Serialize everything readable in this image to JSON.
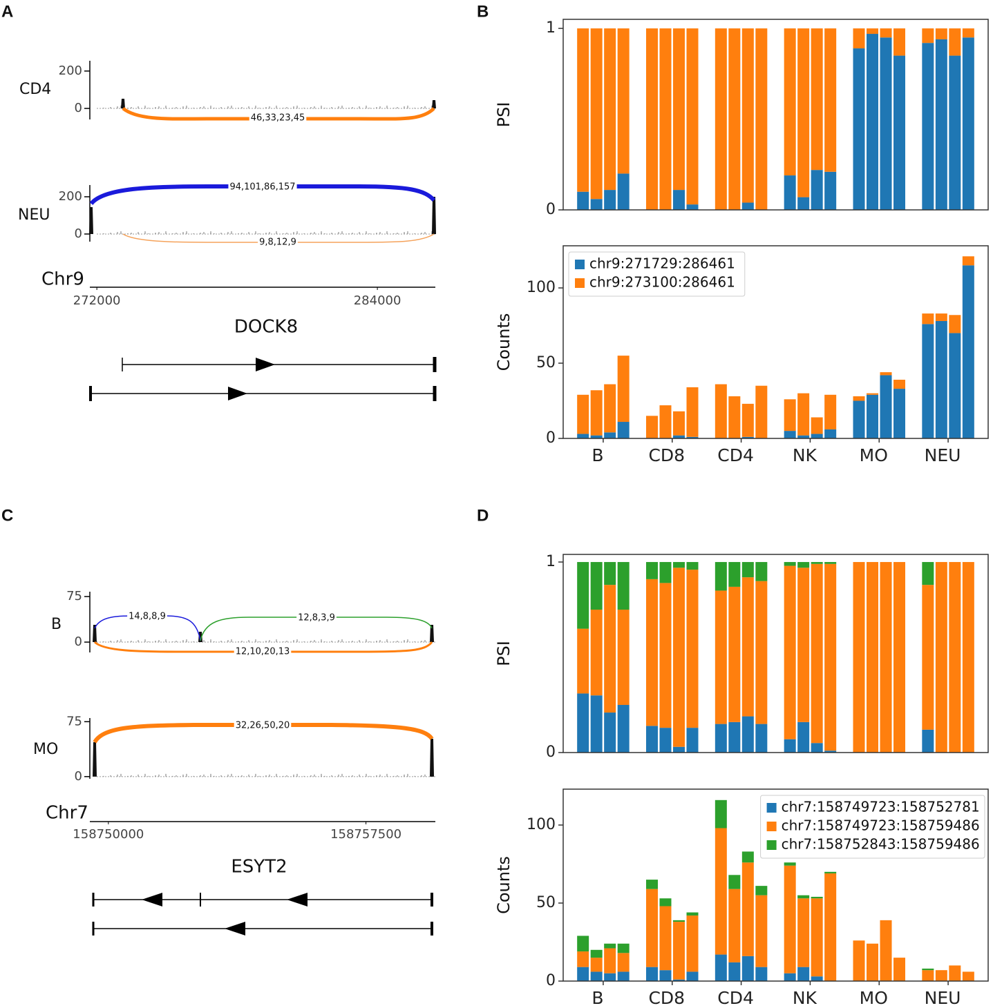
{
  "panel_labels": [
    "A",
    "B",
    "C",
    "D"
  ],
  "sashimi": [
    {
      "tracks": [
        {
          "name": "CD4",
          "ylim": [
            -59,
            255
          ],
          "yticks": [
            0,
            200
          ],
          "junctions": [
            "46,33,23,45"
          ]
        },
        {
          "name": "NEU",
          "ylim": [
            -41,
            263
          ],
          "yticks": [
            0,
            200
          ],
          "junctions": [
            "94,101,86,157",
            "9,8,12,9"
          ]
        }
      ],
      "chromosome": "Chr9",
      "xlim": [
        271700,
        286480
      ],
      "xticks": [
        272000,
        284000
      ],
      "gene": "DOCK8"
    },
    {
      "tracks": [
        {
          "name": "B",
          "ylim": [
            -17,
            83
          ],
          "yticks": [
            0,
            75
          ],
          "junctions": [
            "14,8,8,9",
            "12,8,3,9",
            "12,10,20,13"
          ]
        },
        {
          "name": "MO",
          "ylim": [
            -3,
            80
          ],
          "yticks": [
            0,
            75
          ],
          "junctions": [
            "32,26,50,20"
          ]
        }
      ],
      "chromosome": "Chr7",
      "xlim": [
        158749460,
        158759520
      ],
      "xticks": [
        158750000,
        158757500
      ],
      "gene": "ESYT2"
    }
  ],
  "chart_data": [
    {
      "type": "bar",
      "stacked": true,
      "y_label": "PSI",
      "ylim": [
        0,
        1.05
      ],
      "yticks": [
        0,
        1
      ],
      "series": [
        {
          "color": "#1f77b4",
          "values": [
            [
              0.1,
              0.06,
              0.11,
              0.2
            ],
            [
              0,
              0,
              0.11,
              0.03
            ],
            [
              0,
              0,
              0.04,
              0
            ],
            [
              0.19,
              0.07,
              0.22,
              0.21
            ],
            [
              0.89,
              0.97,
              0.95,
              0.85
            ],
            [
              0.92,
              0.94,
              0.85,
              0.95
            ]
          ]
        },
        {
          "color": "#ff7f0e",
          "values": [
            [
              0.9,
              0.94,
              0.89,
              0.8
            ],
            [
              1,
              1,
              0.89,
              0.97
            ],
            [
              1,
              1,
              0.96,
              1
            ],
            [
              0.81,
              0.93,
              0.78,
              0.79
            ],
            [
              0.11,
              0.03,
              0.05,
              0.15
            ],
            [
              0.08,
              0.06,
              0.15,
              0.05
            ]
          ]
        }
      ]
    },
    {
      "type": "bar",
      "stacked": true,
      "y_label": "Counts",
      "ylim": [
        0,
        128
      ],
      "yticks": [
        0,
        50,
        100
      ],
      "legend": "upper left",
      "categories": [
        "B",
        "CD8",
        "CD4",
        "NK",
        "MO",
        "NEU"
      ],
      "series": [
        {
          "name": "chr9:271729:286461",
          "color": "#1f77b4",
          "values": [
            [
              3,
              2,
              4,
              11
            ],
            [
              0,
              0,
              2,
              1
            ],
            [
              0,
              0,
              1,
              0
            ],
            [
              5,
              2,
              3,
              6
            ],
            [
              25,
              29,
              42,
              33
            ],
            [
              76,
              78,
              70,
              115
            ]
          ]
        },
        {
          "name": "chr9:273100:286461",
          "color": "#ff7f0e",
          "values": [
            [
              26,
              30,
              32,
              44
            ],
            [
              15,
              22,
              16,
              33
            ],
            [
              36,
              28,
              22,
              35
            ],
            [
              21,
              28,
              11,
              23
            ],
            [
              3,
              1,
              2,
              6
            ],
            [
              7,
              5,
              12,
              6
            ]
          ]
        }
      ]
    },
    {
      "type": "bar",
      "stacked": true,
      "y_label": "PSI",
      "ylim": [
        0,
        1.04
      ],
      "yticks": [
        0,
        1
      ],
      "series": [
        {
          "color": "#1f77b4",
          "values": [
            [
              0.31,
              0.3,
              0.21,
              0.25
            ],
            [
              0.14,
              0.13,
              0.03,
              0.13
            ],
            [
              0.15,
              0.16,
              0.19,
              0.15
            ],
            [
              0.07,
              0.16,
              0.05,
              0.01
            ],
            [
              0,
              0,
              0,
              0
            ],
            [
              0.12,
              0,
              0,
              0
            ]
          ]
        },
        {
          "color": "#ff7f0e",
          "values": [
            [
              0.34,
              0.45,
              0.67,
              0.5
            ],
            [
              0.77,
              0.76,
              0.94,
              0.83
            ],
            [
              0.7,
              0.71,
              0.73,
              0.75
            ],
            [
              0.91,
              0.81,
              0.94,
              0.98
            ],
            [
              1,
              1,
              1,
              1
            ],
            [
              0.76,
              1,
              1,
              1
            ]
          ]
        },
        {
          "color": "#2ca02c",
          "values": [
            [
              0.35,
              0.25,
              0.12,
              0.25
            ],
            [
              0.09,
              0.11,
              0.03,
              0.04
            ],
            [
              0.15,
              0.13,
              0.08,
              0.1
            ],
            [
              0.02,
              0.03,
              0.01,
              0.01
            ],
            [
              0,
              0,
              0,
              0
            ],
            [
              0.12,
              0,
              0,
              0
            ]
          ]
        }
      ]
    },
    {
      "type": "bar",
      "stacked": true,
      "y_label": "Counts",
      "ylim": [
        0,
        123
      ],
      "yticks": [
        0,
        50,
        100
      ],
      "legend": "upper right",
      "categories": [
        "B",
        "CD8",
        "CD4",
        "NK",
        "MO",
        "NEU"
      ],
      "series": [
        {
          "name": "chr7:158749723:158752781",
          "color": "#1f77b4",
          "values": [
            [
              9,
              6,
              5,
              6
            ],
            [
              9,
              7,
              1,
              6
            ],
            [
              17,
              12,
              16,
              9
            ],
            [
              5,
              9,
              3,
              0
            ],
            [
              0,
              0,
              0,
              0
            ],
            [
              0,
              0,
              0,
              0
            ]
          ]
        },
        {
          "name": "chr7:158749723:158759486",
          "color": "#ff7f0e",
          "values": [
            [
              10,
              9,
              16,
              12
            ],
            [
              50,
              41,
              37,
              36
            ],
            [
              81,
              47,
              60,
              46
            ],
            [
              69,
              44,
              50,
              69
            ],
            [
              26,
              24,
              39,
              15
            ],
            [
              7,
              7,
              10,
              6
            ]
          ]
        },
        {
          "name": "chr7:158752843:158759486",
          "color": "#2ca02c",
          "values": [
            [
              10,
              5,
              3,
              6
            ],
            [
              6,
              5,
              1,
              2
            ],
            [
              18,
              9,
              7,
              6
            ],
            [
              2,
              2,
              1,
              1
            ],
            [
              0,
              0,
              0,
              0
            ],
            [
              1,
              0,
              0,
              0
            ]
          ]
        }
      ]
    }
  ]
}
